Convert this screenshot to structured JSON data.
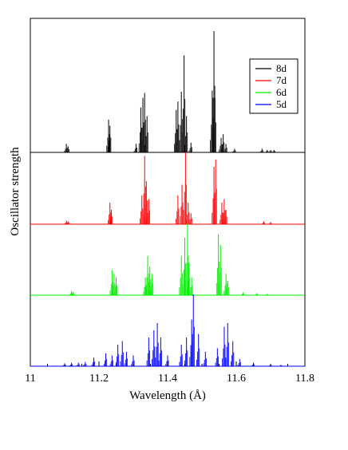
{
  "chart_data": {
    "type": "line",
    "title": "",
    "xlabel": "Wavelength (Å)",
    "ylabel": "Oscillator strength",
    "xlim": [
      11.0,
      11.8
    ],
    "x_ticks": [
      "11",
      "11.2",
      "11.4",
      "11.6",
      "11.8"
    ],
    "y_ticks_labeled": false,
    "grid": false,
    "legend": {
      "placement": "top-right",
      "entries": [
        "8d",
        "7d",
        "6d",
        "5d"
      ]
    },
    "layout": "vertically stacked panels sharing x axis, relative intensity (0-1 per panel)",
    "series": [
      {
        "name": "8d",
        "color": "#000000",
        "peaks": [
          [
            11.105,
            0.07
          ],
          [
            11.11,
            0.05
          ],
          [
            11.228,
            0.27
          ],
          [
            11.232,
            0.22
          ],
          [
            11.308,
            0.07
          ],
          [
            11.322,
            0.37
          ],
          [
            11.328,
            0.45
          ],
          [
            11.333,
            0.49
          ],
          [
            11.34,
            0.3
          ],
          [
            11.425,
            0.35
          ],
          [
            11.43,
            0.42
          ],
          [
            11.44,
            0.5
          ],
          [
            11.448,
            0.8
          ],
          [
            11.455,
            0.3
          ],
          [
            11.468,
            0.08
          ],
          [
            11.53,
            0.51
          ],
          [
            11.535,
            1.0
          ],
          [
            11.538,
            0.45
          ],
          [
            11.556,
            0.12
          ],
          [
            11.562,
            0.15
          ],
          [
            11.57,
            0.07
          ],
          [
            11.595,
            0.03
          ],
          [
            11.675,
            0.03
          ],
          [
            11.69,
            0.02
          ],
          [
            11.7,
            0.02
          ],
          [
            11.71,
            0.02
          ]
        ]
      },
      {
        "name": "7d",
        "color": "#ff0000",
        "peaks": [
          [
            11.105,
            0.05
          ],
          [
            11.11,
            0.04
          ],
          [
            11.232,
            0.3
          ],
          [
            11.236,
            0.2
          ],
          [
            11.325,
            0.4
          ],
          [
            11.333,
            0.95
          ],
          [
            11.338,
            0.6
          ],
          [
            11.345,
            0.35
          ],
          [
            11.43,
            0.4
          ],
          [
            11.442,
            0.55
          ],
          [
            11.452,
            1.0
          ],
          [
            11.46,
            0.3
          ],
          [
            11.468,
            0.15
          ],
          [
            11.535,
            0.8
          ],
          [
            11.54,
            0.9
          ],
          [
            11.558,
            0.3
          ],
          [
            11.565,
            0.35
          ],
          [
            11.57,
            0.2
          ],
          [
            11.68,
            0.04
          ],
          [
            11.7,
            0.03
          ]
        ]
      },
      {
        "name": "6d",
        "color": "#00ee00",
        "peaks": [
          [
            11.12,
            0.06
          ],
          [
            11.125,
            0.05
          ],
          [
            11.238,
            0.35
          ],
          [
            11.244,
            0.3
          ],
          [
            11.25,
            0.25
          ],
          [
            11.335,
            0.25
          ],
          [
            11.342,
            0.55
          ],
          [
            11.348,
            0.4
          ],
          [
            11.355,
            0.3
          ],
          [
            11.44,
            0.55
          ],
          [
            11.45,
            0.8
          ],
          [
            11.458,
            1.0
          ],
          [
            11.462,
            0.45
          ],
          [
            11.47,
            0.25
          ],
          [
            11.548,
            0.85
          ],
          [
            11.554,
            0.7
          ],
          [
            11.57,
            0.3
          ],
          [
            11.575,
            0.2
          ],
          [
            11.62,
            0.04
          ],
          [
            11.66,
            0.03
          ],
          [
            11.69,
            0.02
          ]
        ]
      },
      {
        "name": "5d",
        "color": "#0000ff",
        "peaks": [
          [
            11.1,
            0.04
          ],
          [
            11.12,
            0.05
          ],
          [
            11.14,
            0.05
          ],
          [
            11.16,
            0.06
          ],
          [
            11.185,
            0.12
          ],
          [
            11.22,
            0.18
          ],
          [
            11.238,
            0.15
          ],
          [
            11.255,
            0.3
          ],
          [
            11.268,
            0.35
          ],
          [
            11.28,
            0.2
          ],
          [
            11.3,
            0.15
          ],
          [
            11.345,
            0.4
          ],
          [
            11.36,
            0.5
          ],
          [
            11.37,
            0.6
          ],
          [
            11.38,
            0.4
          ],
          [
            11.4,
            0.15
          ],
          [
            11.44,
            0.3
          ],
          [
            11.455,
            0.4
          ],
          [
            11.47,
            0.65
          ],
          [
            11.475,
            1.0
          ],
          [
            11.49,
            0.45
          ],
          [
            11.51,
            0.2
          ],
          [
            11.545,
            0.25
          ],
          [
            11.565,
            0.55
          ],
          [
            11.575,
            0.6
          ],
          [
            11.59,
            0.35
          ],
          [
            11.61,
            0.1
          ],
          [
            11.65,
            0.05
          ],
          [
            11.7,
            0.03
          ],
          [
            11.73,
            0.02
          ]
        ]
      }
    ]
  }
}
